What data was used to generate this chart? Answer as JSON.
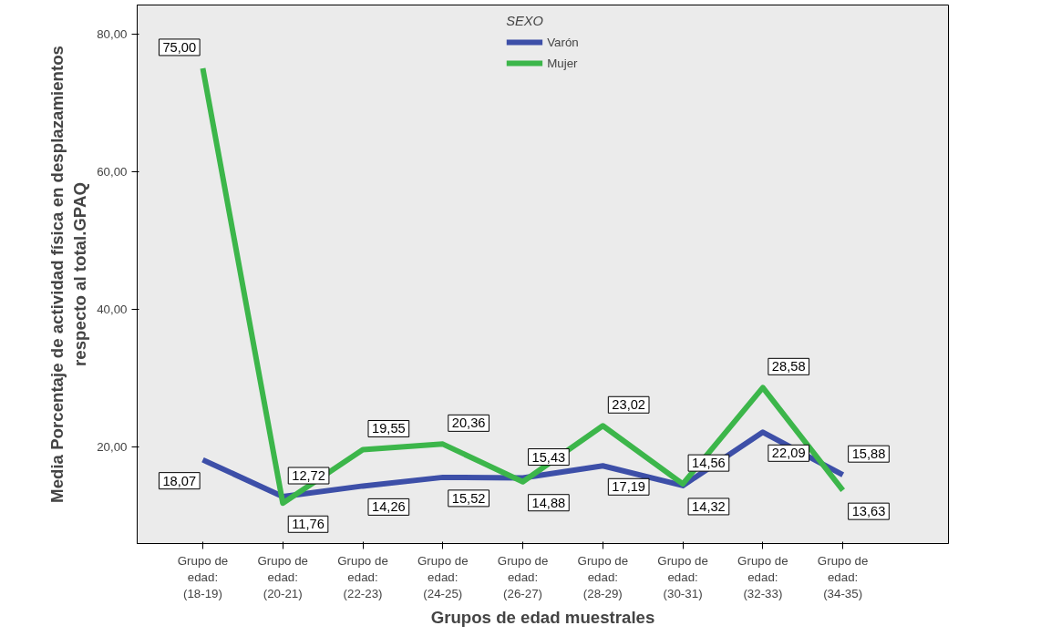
{
  "chart_data": {
    "type": "line",
    "xlabel": "Grupos de edad muestrales",
    "ylabel": "Media Porcentaje de actividad física en desplazamientos respecto al total.GPAQ",
    "legend_title": "SEXO",
    "categories": [
      "Grupo de edad: (18-19)",
      "Grupo de edad: (20-21)",
      "Grupo de edad: (22-23)",
      "Grupo de edad: (24-25)",
      "Grupo de edad: (26-27)",
      "Grupo de edad: (28-29)",
      "Grupo de edad: (30-31)",
      "Grupo de edad: (32-33)",
      "Grupo de edad: (34-35)"
    ],
    "series": [
      {
        "name": "Varón",
        "color": "#3d4fa8",
        "values": [
          18.07,
          12.72,
          14.26,
          15.52,
          15.43,
          17.19,
          14.32,
          22.09,
          15.88
        ],
        "value_labels": [
          "18,07",
          "12,72",
          "14,26",
          "15,52",
          "15,43",
          "17,19",
          "14,32",
          "22,09",
          "15,88"
        ]
      },
      {
        "name": "Mujer",
        "color": "#3cb64a",
        "values": [
          75.0,
          11.76,
          19.55,
          20.36,
          14.88,
          23.02,
          14.56,
          28.58,
          13.63
        ],
        "value_labels": [
          "75,00",
          "11,76",
          "19,55",
          "20,36",
          "14,88",
          "23,02",
          "14,56",
          "28,58",
          "13,63"
        ]
      }
    ],
    "ylim": [
      5.9,
      84.2
    ],
    "yticks": [
      {
        "value": 20,
        "label": "20,00"
      },
      {
        "value": 40,
        "label": "40,00"
      },
      {
        "value": 60,
        "label": "60,00"
      },
      {
        "value": 80,
        "label": "80,00"
      }
    ],
    "grid": false,
    "legend": "top",
    "marker": "none",
    "line_style": "solid"
  }
}
